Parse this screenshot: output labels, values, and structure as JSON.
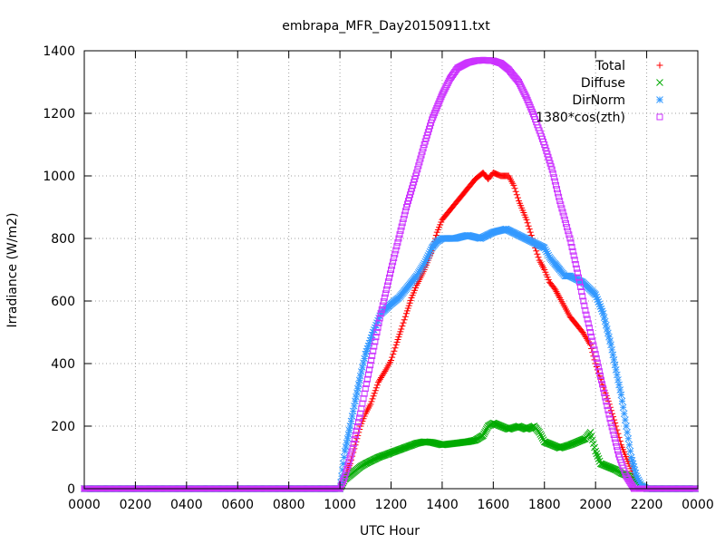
{
  "chart_data": {
    "type": "scatter",
    "title": "embrapa_MFR_Day20150911.txt",
    "xlabel": "UTC Hour",
    "ylabel": "Irradiance (W/m2)",
    "xlim": [
      0,
      24
    ],
    "ylim": [
      0,
      1400
    ],
    "x_tick_labels": [
      "0000",
      "0200",
      "0400",
      "0600",
      "0800",
      "1000",
      "1200",
      "1400",
      "1600",
      "1800",
      "2000",
      "2200",
      "0000"
    ],
    "y_ticks": [
      0,
      200,
      400,
      600,
      800,
      1000,
      1200,
      1400
    ],
    "grid": true,
    "legend_position": "top-right",
    "series": [
      {
        "name": "Total",
        "marker": "plus",
        "color": "#ff0000",
        "points": [
          [
            10.0,
            0
          ],
          [
            10.1,
            12
          ],
          [
            10.2,
            40
          ],
          [
            10.4,
            80
          ],
          [
            10.6,
            140
          ],
          [
            10.8,
            200
          ],
          [
            11.0,
            240
          ],
          [
            11.2,
            270
          ],
          [
            11.5,
            340
          ],
          [
            11.8,
            380
          ],
          [
            12.0,
            410
          ],
          [
            12.2,
            460
          ],
          [
            12.4,
            510
          ],
          [
            12.6,
            560
          ],
          [
            12.8,
            610
          ],
          [
            13.0,
            650
          ],
          [
            13.3,
            700
          ],
          [
            13.6,
            760
          ],
          [
            13.8,
            820
          ],
          [
            14.0,
            860
          ],
          [
            14.3,
            890
          ],
          [
            14.6,
            920
          ],
          [
            15.0,
            960
          ],
          [
            15.3,
            990
          ],
          [
            15.6,
            1010
          ],
          [
            15.8,
            990
          ],
          [
            16.0,
            1010
          ],
          [
            16.3,
            1000
          ],
          [
            16.6,
            1000
          ],
          [
            16.8,
            970
          ],
          [
            17.0,
            920
          ],
          [
            17.3,
            860
          ],
          [
            17.6,
            780
          ],
          [
            17.8,
            730
          ],
          [
            18.0,
            700
          ],
          [
            18.2,
            660
          ],
          [
            18.4,
            640
          ],
          [
            18.6,
            610
          ],
          [
            18.8,
            580
          ],
          [
            19.0,
            550
          ],
          [
            19.3,
            520
          ],
          [
            19.5,
            500
          ],
          [
            19.8,
            460
          ],
          [
            20.0,
            400
          ],
          [
            20.2,
            350
          ],
          [
            20.5,
            280
          ],
          [
            20.8,
            200
          ],
          [
            21.0,
            140
          ],
          [
            21.3,
            80
          ],
          [
            21.5,
            40
          ],
          [
            21.8,
            10
          ],
          [
            22.0,
            0
          ]
        ]
      },
      {
        "name": "Diffuse",
        "marker": "cross",
        "color": "#00aa00",
        "points": [
          [
            10.0,
            0
          ],
          [
            10.2,
            30
          ],
          [
            10.5,
            50
          ],
          [
            10.8,
            70
          ],
          [
            11.0,
            80
          ],
          [
            11.5,
            100
          ],
          [
            12.0,
            115
          ],
          [
            12.5,
            130
          ],
          [
            13.0,
            145
          ],
          [
            13.3,
            150
          ],
          [
            13.6,
            148
          ],
          [
            14.0,
            140
          ],
          [
            14.5,
            145
          ],
          [
            15.0,
            150
          ],
          [
            15.3,
            155
          ],
          [
            15.6,
            170
          ],
          [
            15.8,
            200
          ],
          [
            16.0,
            210
          ],
          [
            16.3,
            200
          ],
          [
            16.6,
            190
          ],
          [
            17.0,
            200
          ],
          [
            17.3,
            190
          ],
          [
            17.6,
            200
          ],
          [
            17.8,
            180
          ],
          [
            18.0,
            150
          ],
          [
            18.3,
            140
          ],
          [
            18.6,
            130
          ],
          [
            19.0,
            140
          ],
          [
            19.3,
            150
          ],
          [
            19.6,
            160
          ],
          [
            19.8,
            180
          ],
          [
            20.0,
            120
          ],
          [
            20.2,
            80
          ],
          [
            20.5,
            70
          ],
          [
            20.8,
            60
          ],
          [
            21.0,
            50
          ],
          [
            21.3,
            40
          ],
          [
            21.6,
            20
          ],
          [
            21.8,
            5
          ],
          [
            22.0,
            0
          ]
        ]
      },
      {
        "name": "DirNorm",
        "marker": "star",
        "color": "#3399ff",
        "points": [
          [
            10.0,
            0
          ],
          [
            10.1,
            60
          ],
          [
            10.2,
            120
          ],
          [
            10.4,
            200
          ],
          [
            10.6,
            280
          ],
          [
            10.8,
            360
          ],
          [
            11.0,
            430
          ],
          [
            11.3,
            500
          ],
          [
            11.6,
            560
          ],
          [
            12.0,
            590
          ],
          [
            12.3,
            610
          ],
          [
            12.6,
            640
          ],
          [
            13.0,
            680
          ],
          [
            13.3,
            720
          ],
          [
            13.6,
            770
          ],
          [
            13.8,
            790
          ],
          [
            14.0,
            800
          ],
          [
            14.5,
            800
          ],
          [
            15.0,
            810
          ],
          [
            15.5,
            800
          ],
          [
            16.0,
            820
          ],
          [
            16.5,
            830
          ],
          [
            17.0,
            810
          ],
          [
            17.5,
            790
          ],
          [
            18.0,
            770
          ],
          [
            18.2,
            740
          ],
          [
            18.4,
            720
          ],
          [
            18.6,
            700
          ],
          [
            18.8,
            680
          ],
          [
            19.0,
            680
          ],
          [
            19.5,
            660
          ],
          [
            20.0,
            620
          ],
          [
            20.3,
            560
          ],
          [
            20.6,
            460
          ],
          [
            20.8,
            380
          ],
          [
            21.0,
            300
          ],
          [
            21.2,
            200
          ],
          [
            21.4,
            100
          ],
          [
            21.6,
            40
          ],
          [
            21.8,
            10
          ],
          [
            22.0,
            0
          ]
        ]
      },
      {
        "name": "1380*cos(zth)",
        "marker": "square",
        "color": "#cc33ff",
        "points": [
          [
            10.0,
            0
          ],
          [
            10.2,
            40
          ],
          [
            10.5,
            130
          ],
          [
            10.8,
            240
          ],
          [
            11.0,
            320
          ],
          [
            11.3,
            440
          ],
          [
            11.6,
            560
          ],
          [
            12.0,
            700
          ],
          [
            12.3,
            800
          ],
          [
            12.6,
            900
          ],
          [
            13.0,
            1010
          ],
          [
            13.3,
            1100
          ],
          [
            13.6,
            1180
          ],
          [
            14.0,
            1260
          ],
          [
            14.3,
            1310
          ],
          [
            14.6,
            1345
          ],
          [
            15.0,
            1362
          ],
          [
            15.3,
            1368
          ],
          [
            15.6,
            1370
          ],
          [
            16.0,
            1368
          ],
          [
            16.3,
            1360
          ],
          [
            16.6,
            1340
          ],
          [
            17.0,
            1300
          ],
          [
            17.3,
            1250
          ],
          [
            17.6,
            1190
          ],
          [
            18.0,
            1100
          ],
          [
            18.3,
            1020
          ],
          [
            18.6,
            920
          ],
          [
            19.0,
            800
          ],
          [
            19.3,
            690
          ],
          [
            19.6,
            570
          ],
          [
            20.0,
            430
          ],
          [
            20.3,
            320
          ],
          [
            20.6,
            210
          ],
          [
            20.9,
            110
          ],
          [
            21.2,
            40
          ],
          [
            21.5,
            0
          ],
          [
            22.0,
            0
          ]
        ]
      }
    ]
  }
}
